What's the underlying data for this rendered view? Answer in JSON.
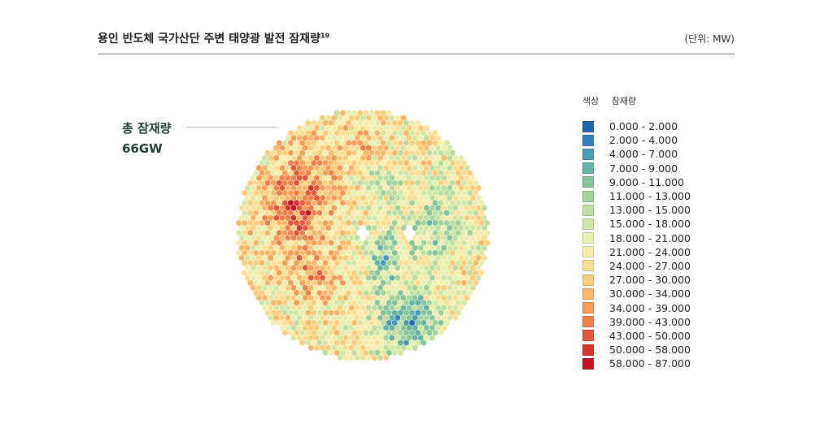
{
  "header": {
    "title": "용인 반도체 국가산단 주변 태양광 발전 잠재량",
    "title_sup": "19",
    "unit": "(단위: MW)"
  },
  "summary": {
    "label": "총 잠재량",
    "value": "66GW"
  },
  "legend": {
    "color_header": "색상",
    "value_header": "잠재량",
    "items": [
      {
        "label": "0.000 - 2.000",
        "color": "#2166ac"
      },
      {
        "label": "2.000 - 4.000",
        "color": "#3182bd"
      },
      {
        "label": "4.000 - 7.000",
        "color": "#4a9bb5"
      },
      {
        "label": "7.000 - 9.000",
        "color": "#66b3a5"
      },
      {
        "label": "9.000 - 11.000",
        "color": "#86c59c"
      },
      {
        "label": "11.000 - 13.000",
        "color": "#a4d39a"
      },
      {
        "label": "13.000 - 15.000",
        "color": "#bedf9f"
      },
      {
        "label": "15.000 - 18.000",
        "color": "#d3e8a5"
      },
      {
        "label": "18.000 - 21.000",
        "color": "#e8efae"
      },
      {
        "label": "21.000 - 24.000",
        "color": "#f6edac"
      },
      {
        "label": "24.000 - 27.000",
        "color": "#fbdf95"
      },
      {
        "label": "27.000 - 30.000",
        "color": "#fcce7e"
      },
      {
        "label": "30.000 - 34.000",
        "color": "#fbb86a"
      },
      {
        "label": "34.000 - 39.000",
        "color": "#f79d58"
      },
      {
        "label": "39.000 - 43.000",
        "color": "#f07f4a"
      },
      {
        "label": "43.000 - 50.000",
        "color": "#e4583a"
      },
      {
        "label": "50.000 - 58.000",
        "color": "#d7342c"
      },
      {
        "label": "58.000 - 87.000",
        "color": "#c1121f"
      }
    ]
  }
}
